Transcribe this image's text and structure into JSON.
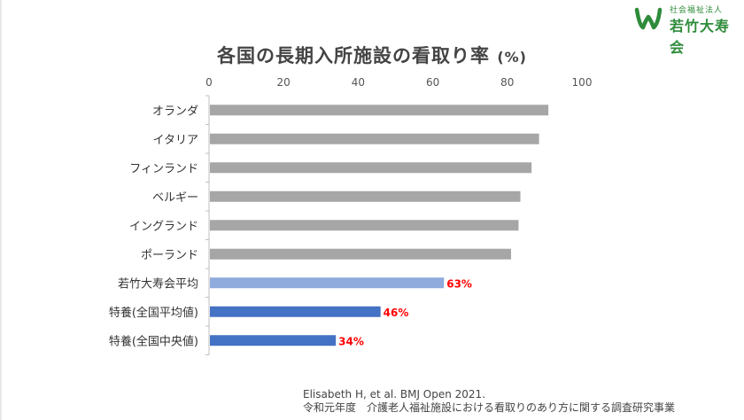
{
  "logo": {
    "subtitle": "社会福祉法人",
    "name": "若竹大寿会",
    "brand_color": "#2e8b3a"
  },
  "chart_data": {
    "type": "bar",
    "orientation": "horizontal",
    "title": "各国の長期入所施設の看取り率",
    "title_unit": "(%)",
    "xlim": [
      0,
      100
    ],
    "x_ticks": [
      0,
      20,
      40,
      60,
      80,
      100
    ],
    "grid": false,
    "categories": [
      "オランダ",
      "イタリア",
      "フィンランド",
      "ベルギー",
      "イングランド",
      "ポーランド",
      "若竹大寿会平均",
      "特養(全国平均値)",
      "特養(全国中央値)"
    ],
    "values": [
      91,
      88.5,
      86.5,
      83.5,
      83,
      81,
      63,
      46,
      34
    ],
    "data_labels": [
      "",
      "",
      "",
      "",
      "",
      "",
      "63%",
      "46%",
      "34%"
    ],
    "colors": [
      "#a6a6a6",
      "#a6a6a6",
      "#a6a6a6",
      "#a6a6a6",
      "#a6a6a6",
      "#a6a6a6",
      "#8faadc",
      "#4472c4",
      "#4472c4"
    ],
    "label_color": "#ff0000"
  },
  "source": {
    "line1": "Elisabeth H, et al. BMJ Open 2021.",
    "line2": "令和元年度　介護老人福祉施設における看取りのあり方に関する調査研究事業"
  }
}
